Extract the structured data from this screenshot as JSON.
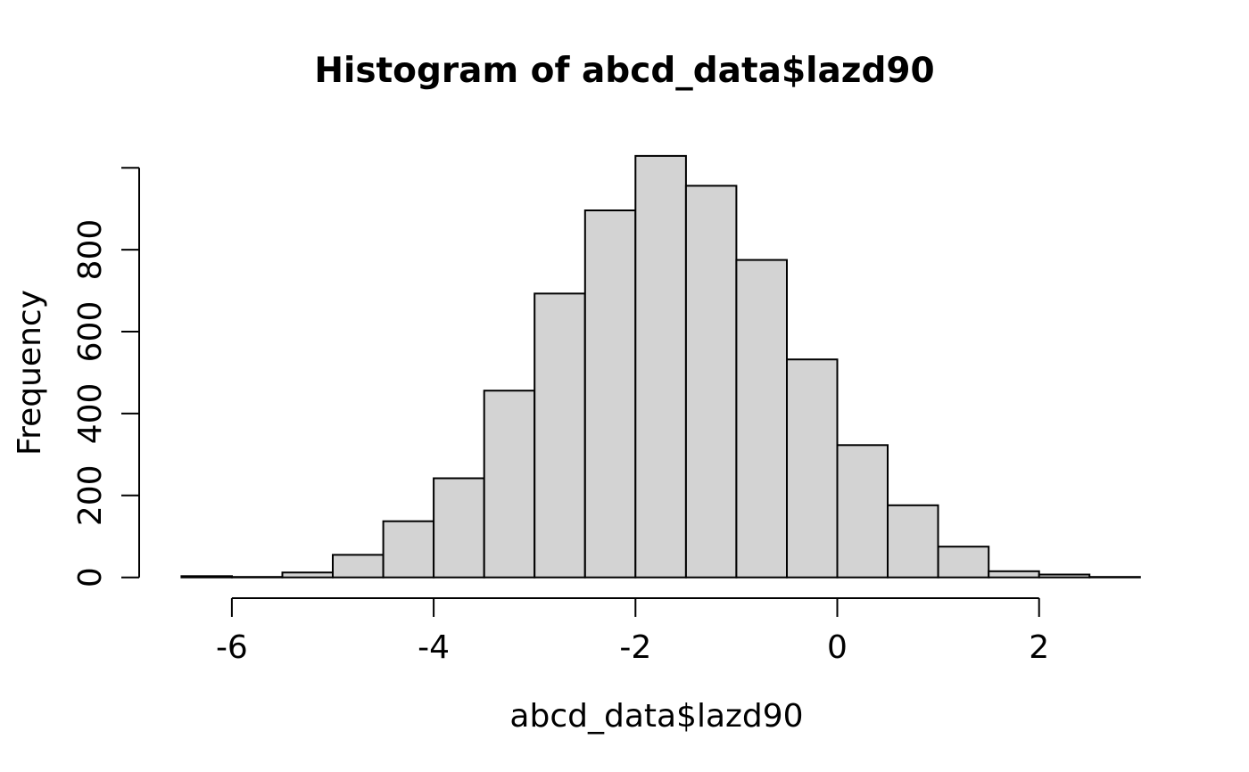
{
  "figure": {
    "background": "#ffffff"
  },
  "chart_data": {
    "type": "bar",
    "subtype": "histogram",
    "title": "Histogram of abcd_data$lazd90",
    "xlabel": "abcd_data$lazd90",
    "ylabel": "Frequency",
    "breaks": [
      -6.5,
      -6.0,
      -5.5,
      -5.0,
      -4.5,
      -4.0,
      -3.5,
      -3.0,
      -2.5,
      -2.0,
      -1.5,
      -1.0,
      -0.5,
      0.0,
      0.5,
      1.0,
      1.5,
      2.0,
      2.5,
      3.0
    ],
    "counts": [
      3,
      1,
      12,
      55,
      137,
      242,
      456,
      693,
      896,
      1029,
      956,
      775,
      532,
      323,
      176,
      75,
      15,
      7,
      1
    ],
    "bin_width": 0.5,
    "xlim": [
      -6.5,
      3.0
    ],
    "ylim": [
      0,
      1029
    ],
    "x_ticks": {
      "values": [
        -6,
        -4,
        -2,
        0,
        2
      ],
      "labels": [
        "-6",
        "-4",
        "-2",
        "0",
        "2"
      ]
    },
    "y_ticks": {
      "values": [
        0,
        200,
        400,
        600,
        800,
        1000
      ],
      "labels": [
        "0",
        "200",
        "400",
        "600",
        "800",
        ""
      ]
    },
    "grid": false,
    "legend": false,
    "colors": {
      "bar_fill": "#d3d3d3",
      "bar_border": "#000000",
      "axis": "#000000",
      "text": "#000000",
      "background": "#ffffff"
    }
  }
}
